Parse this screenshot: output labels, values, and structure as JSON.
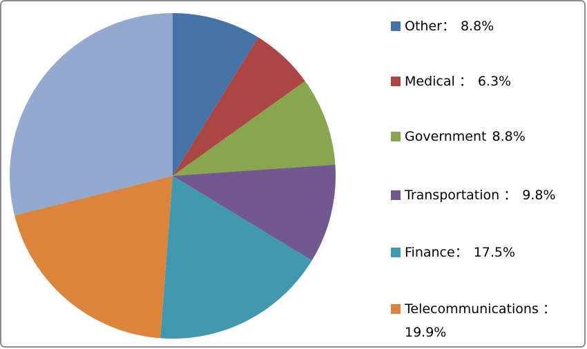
{
  "chart_data": {
    "type": "pie",
    "categories": [
      "Other：",
      "Medical ：",
      "Government",
      "Transportation ：",
      "Finance：",
      "Telecommunications ：",
      null
    ],
    "values": [
      8.8,
      6.3,
      8.8,
      9.8,
      17.5,
      19.9,
      28.9
    ],
    "value_labels": [
      "8.8%",
      "6.3%",
      "8.8%",
      "9.8%",
      "17.5%",
      "19.9%",
      null
    ],
    "colors": [
      "#4572A7",
      "#AA4643",
      "#89A54E",
      "#71588F",
      "#4198AF",
      "#DB843D",
      "#93A9CF"
    ],
    "legend": "right"
  }
}
